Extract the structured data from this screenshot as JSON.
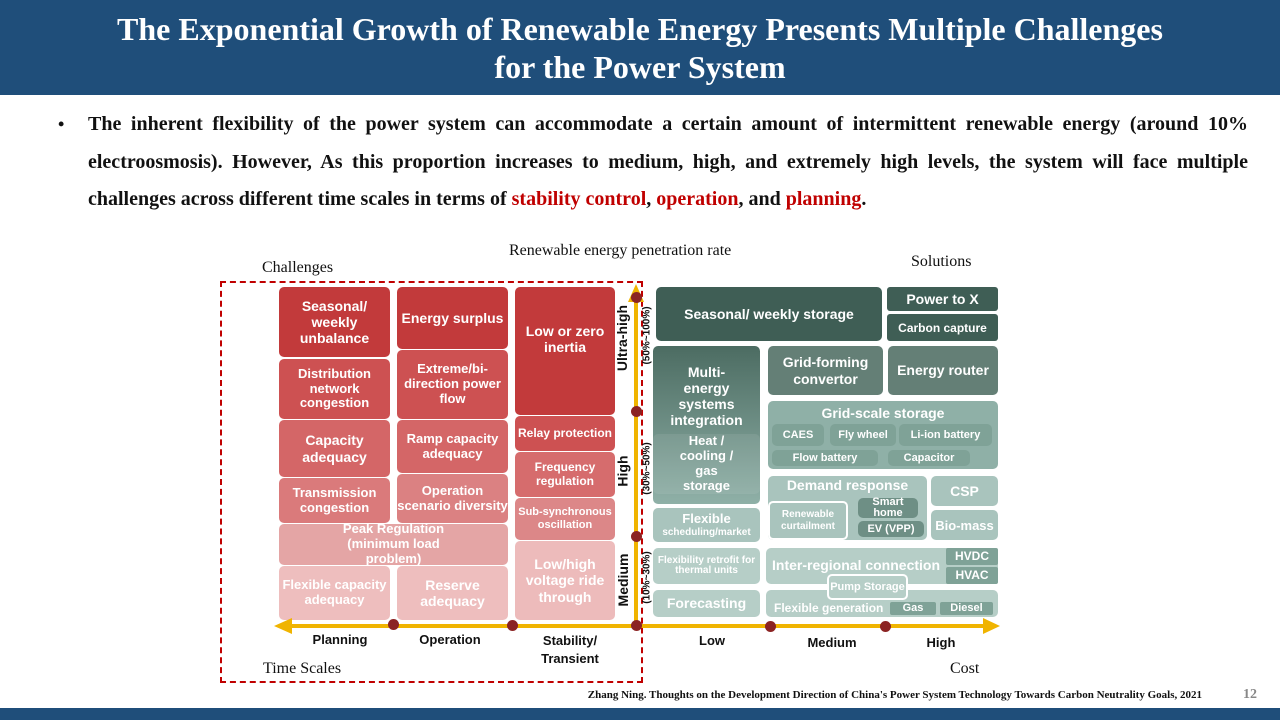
{
  "header": {
    "title_line1": "The Exponential Growth of Renewable Energy Presents Multiple Challenges",
    "title_line2": "for the Power System"
  },
  "bullet": {
    "marker": "•",
    "t1": "The inherent flexibility of the power system can accommodate a certain amount of intermittent renewable energy (around 10% electroosmosis). However, As this proportion increases to medium, high, and extremely high levels, the system will face multiple challenges across different time scales in terms of ",
    "k1": "stability control",
    "t2": ", ",
    "k2": "operation",
    "t3": ", and ",
    "k3": "planning",
    "t4": "."
  },
  "diagram": {
    "top_label": "Renewable energy penetration rate",
    "challenges": "Challenges",
    "solutions": "Solutions",
    "time_scales": "Time Scales",
    "cost": "Cost",
    "time_axis": [
      "Planning",
      "Operation",
      "Stability/",
      "Transient"
    ],
    "cost_axis": [
      "Low",
      "Medium",
      "High"
    ],
    "levels": [
      {
        "name": "Ultra-high",
        "range": "(50%~100%)"
      },
      {
        "name": "High",
        "range": "(30%~50%)"
      },
      {
        "name": "Medium",
        "range": "(10%~30%)"
      }
    ],
    "challenge_boxes": {
      "c1": [
        "Seasonal/ weekly unbalance",
        "Distribution network congestion",
        "Capacity adequacy",
        "Transmission congestion",
        "Flexible capacity adequacy"
      ],
      "c2": [
        "Energy surplus",
        "Extreme/bi-direction power flow",
        "Ramp capacity adequacy",
        "Operation scenario diversity",
        "Reserve adequacy"
      ],
      "peak": "Peak Regulation (minimum load problem)",
      "c3": [
        "Low or zero inertia",
        "Relay protection",
        "Frequency regulation",
        "Sub-synchronous oscillation",
        "Low/high voltage ride through"
      ]
    },
    "solution_boxes": {
      "seasonal": "Seasonal/ weekly storage",
      "p2x": "Power to X",
      "carbon": "Carbon capture",
      "multi": "Multi-energy systems integration",
      "heat": "Heat / cooling / gas storage",
      "gridforming": "Grid-forming convertor",
      "router": "Energy router",
      "gridscale": "Grid-scale storage",
      "caes": "CAES",
      "fly": "Fly wheel",
      "liion": "Li-ion battery",
      "flow": "Flow battery",
      "cap": "Capacitor",
      "demand": "Demand response",
      "curtail": "Renewable curtailment",
      "smart": "Smart home",
      "ev": "EV (VPP)",
      "csp": "CSP",
      "bio": "Bio-mass",
      "flexsched": "Flexible",
      "flexsched2": "scheduling/market",
      "retrofit": "Flexibility retrofit for thermal units",
      "forecast": "Forecasting",
      "inter": "Inter-regional connection",
      "hvdc": "HVDC",
      "hvac": "HVAC",
      "pump": "Pump Storage",
      "flexgen": "Flexible generation",
      "gas": "Gas",
      "diesel": "Diesel"
    }
  },
  "footer": {
    "citation": "Zhang Ning. Thoughts on the Development Direction of China's Power System Technology Towards Carbon Neutrality Goals, 2021",
    "page": "12"
  }
}
